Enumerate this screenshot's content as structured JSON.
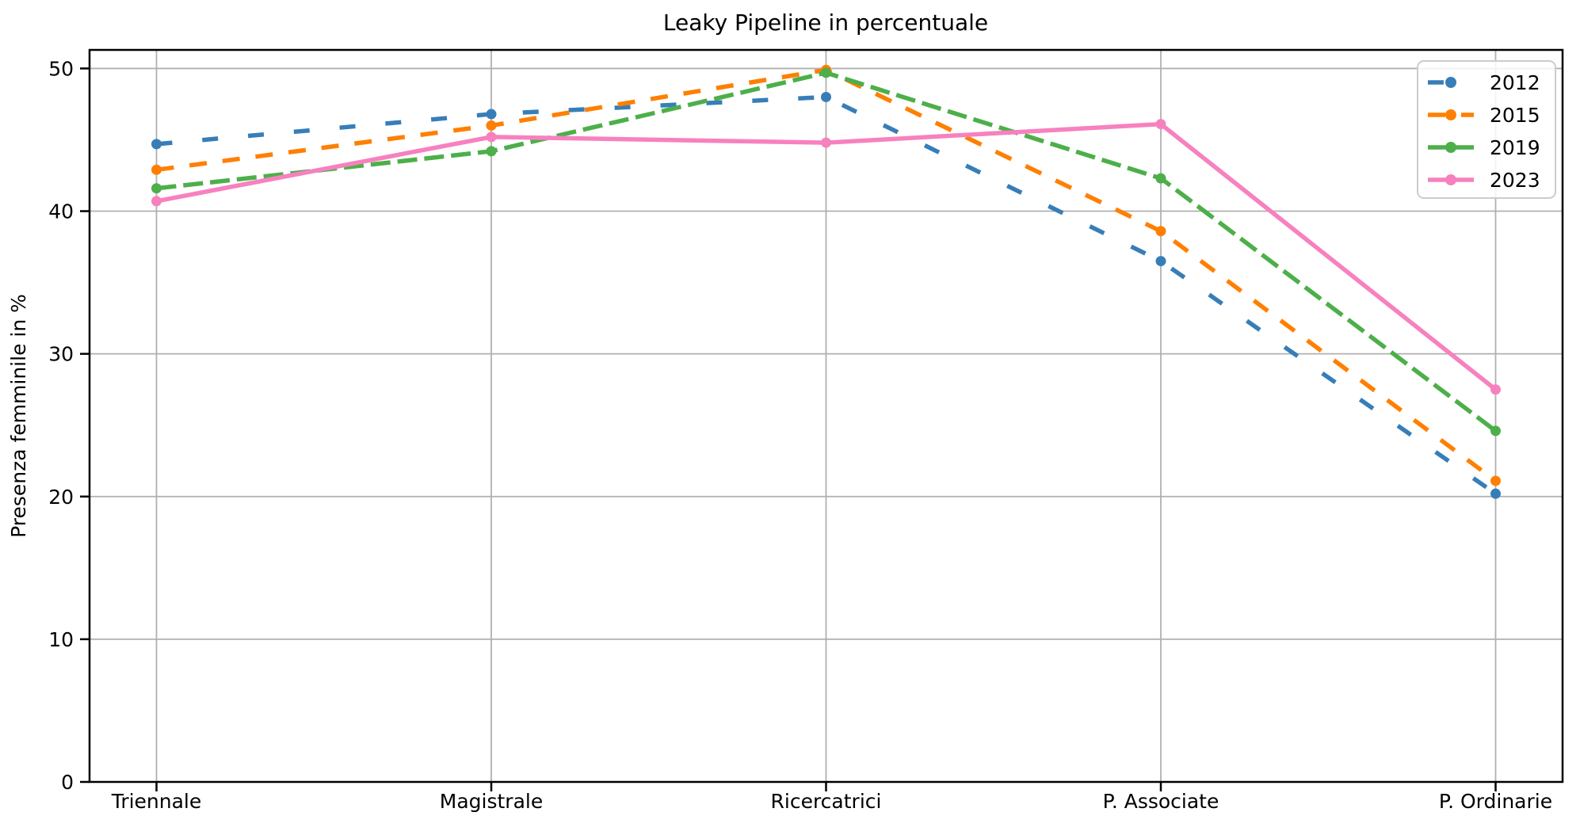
{
  "chart_data": {
    "type": "line",
    "title": "Leaky Pipeline in percentuale",
    "xlabel": "",
    "ylabel": "Presenza femminile in %",
    "categories": [
      "Triennale",
      "Magistrale",
      "Ricercatrici",
      "P. Associate",
      "P. Ordinarie"
    ],
    "series": [
      {
        "name": "2012",
        "color": "#377eb8",
        "line_style": "dashed",
        "dash_pattern": "20 38",
        "marker": "circle",
        "values": [
          44.7,
          46.8,
          48.0,
          36.5,
          20.2
        ]
      },
      {
        "name": "2015",
        "color": "#ff7f00",
        "line_style": "dashed",
        "dash_pattern": "22 20",
        "marker": "circle",
        "values": [
          42.9,
          46.0,
          49.9,
          38.6,
          21.1
        ]
      },
      {
        "name": "2019",
        "color": "#4daf4a",
        "line_style": "dashed",
        "dash_pattern": "25 9",
        "marker": "circle",
        "values": [
          41.6,
          44.2,
          49.7,
          42.3,
          24.6
        ]
      },
      {
        "name": "2023",
        "color": "#f781bf",
        "line_style": "solid",
        "dash_pattern": "",
        "marker": "circle",
        "values": [
          40.7,
          45.2,
          44.8,
          46.1,
          27.5
        ]
      }
    ],
    "ylim": [
      0,
      51.3
    ],
    "yticks": [
      0,
      10,
      20,
      30,
      40,
      50
    ],
    "grid": true,
    "legend": {
      "position": "upper right",
      "entries": [
        "2012",
        "2015",
        "2019",
        "2023"
      ]
    },
    "colors": {
      "grid": "#b0b0b0",
      "spine": "#000000",
      "text": "#000000",
      "background": "#ffffff",
      "legend_border": "#cccccc",
      "legend_background": "#ffffff"
    }
  }
}
